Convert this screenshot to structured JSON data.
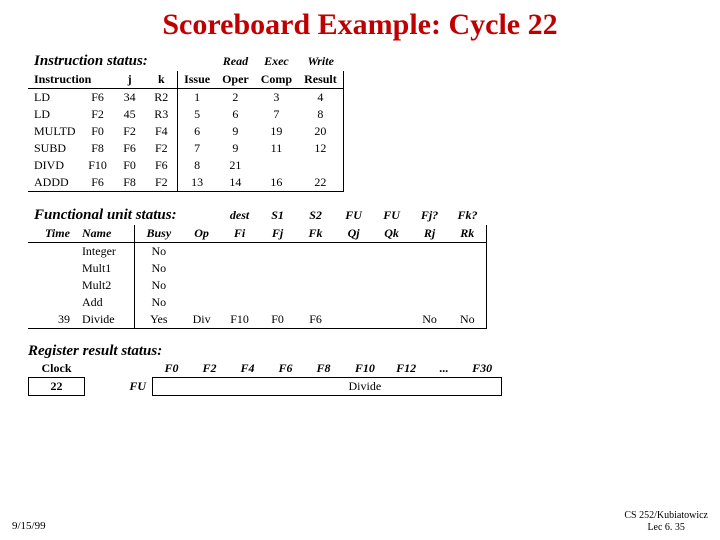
{
  "title": "Scoreboard Example: Cycle 22",
  "footer": {
    "date": "9/15/99",
    "course": "CS 252/Kubiatowicz",
    "lec": "Lec 6. 35"
  },
  "instr": {
    "section": "Instruction status:",
    "top_hdr": {
      "read": "Read",
      "exec": "Exec",
      "write": "Write"
    },
    "hdr": {
      "instruction": "Instruction",
      "j": "j",
      "k": "k",
      "issue": "Issue",
      "oper": "Oper",
      "comp": "Comp",
      "result": "Result"
    },
    "rows": [
      {
        "op": "LD",
        "d": "F6",
        "j": "34",
        "k": "R2",
        "issue": "1",
        "oper": "2",
        "comp": "3",
        "result": "4"
      },
      {
        "op": "LD",
        "d": "F2",
        "j": "45",
        "k": "R3",
        "issue": "5",
        "oper": "6",
        "comp": "7",
        "result": "8"
      },
      {
        "op": "MULTD",
        "d": "F0",
        "j": "F2",
        "k": "F4",
        "issue": "6",
        "oper": "9",
        "comp": "19",
        "result": "20"
      },
      {
        "op": "SUBD",
        "d": "F8",
        "j": "F6",
        "k": "F2",
        "issue": "7",
        "oper": "9",
        "comp": "11",
        "result": "12"
      },
      {
        "op": "DIVD",
        "d": "F10",
        "j": "F0",
        "k": "F6",
        "issue": "8",
        "oper": "21",
        "comp": "",
        "result": ""
      },
      {
        "op": "ADDD",
        "d": "F6",
        "j": "F8",
        "k": "F2",
        "issue": "13",
        "oper": "14",
        "comp": "16",
        "result": "22"
      }
    ]
  },
  "fu": {
    "section": "Functional unit status:",
    "top_hdr": {
      "dest": "dest",
      "s1": "S1",
      "s2": "S2",
      "fu1": "FU",
      "fu2": "FU",
      "fjq": "Fj?",
      "fkq": "Fk?"
    },
    "hdr": {
      "time": "Time",
      "name": "Name",
      "busy": "Busy",
      "op": "Op",
      "fi": "Fi",
      "fj": "Fj",
      "fk": "Fk",
      "qj": "Qj",
      "qk": "Qk",
      "rj": "Rj",
      "rk": "Rk"
    },
    "rows": [
      {
        "time": "",
        "name": "Integer",
        "busy": "No",
        "op": "",
        "fi": "",
        "fj": "",
        "fk": "",
        "qj": "",
        "qk": "",
        "rj": "",
        "rk": ""
      },
      {
        "time": "",
        "name": "Mult1",
        "busy": "No",
        "op": "",
        "fi": "",
        "fj": "",
        "fk": "",
        "qj": "",
        "qk": "",
        "rj": "",
        "rk": ""
      },
      {
        "time": "",
        "name": "Mult2",
        "busy": "No",
        "op": "",
        "fi": "",
        "fj": "",
        "fk": "",
        "qj": "",
        "qk": "",
        "rj": "",
        "rk": ""
      },
      {
        "time": "",
        "name": "Add",
        "busy": "No",
        "op": "",
        "fi": "",
        "fj": "",
        "fk": "",
        "qj": "",
        "qk": "",
        "rj": "",
        "rk": ""
      },
      {
        "time": "39",
        "name": "Divide",
        "busy": "Yes",
        "op": "Div",
        "fi": "F10",
        "fj": "F0",
        "fk": "F6",
        "qj": "",
        "qk": "",
        "rj": "No",
        "rk": "No"
      }
    ]
  },
  "reg": {
    "section": "Register result status:",
    "clock_label": "Clock",
    "clock_value": "22",
    "fu_label": "FU",
    "cols": [
      "F0",
      "F2",
      "F4",
      "F6",
      "F8",
      "F10",
      "F12",
      "...",
      "F30"
    ],
    "vals": [
      "",
      "",
      "",
      "",
      "",
      "Divide",
      "",
      "",
      ""
    ]
  }
}
